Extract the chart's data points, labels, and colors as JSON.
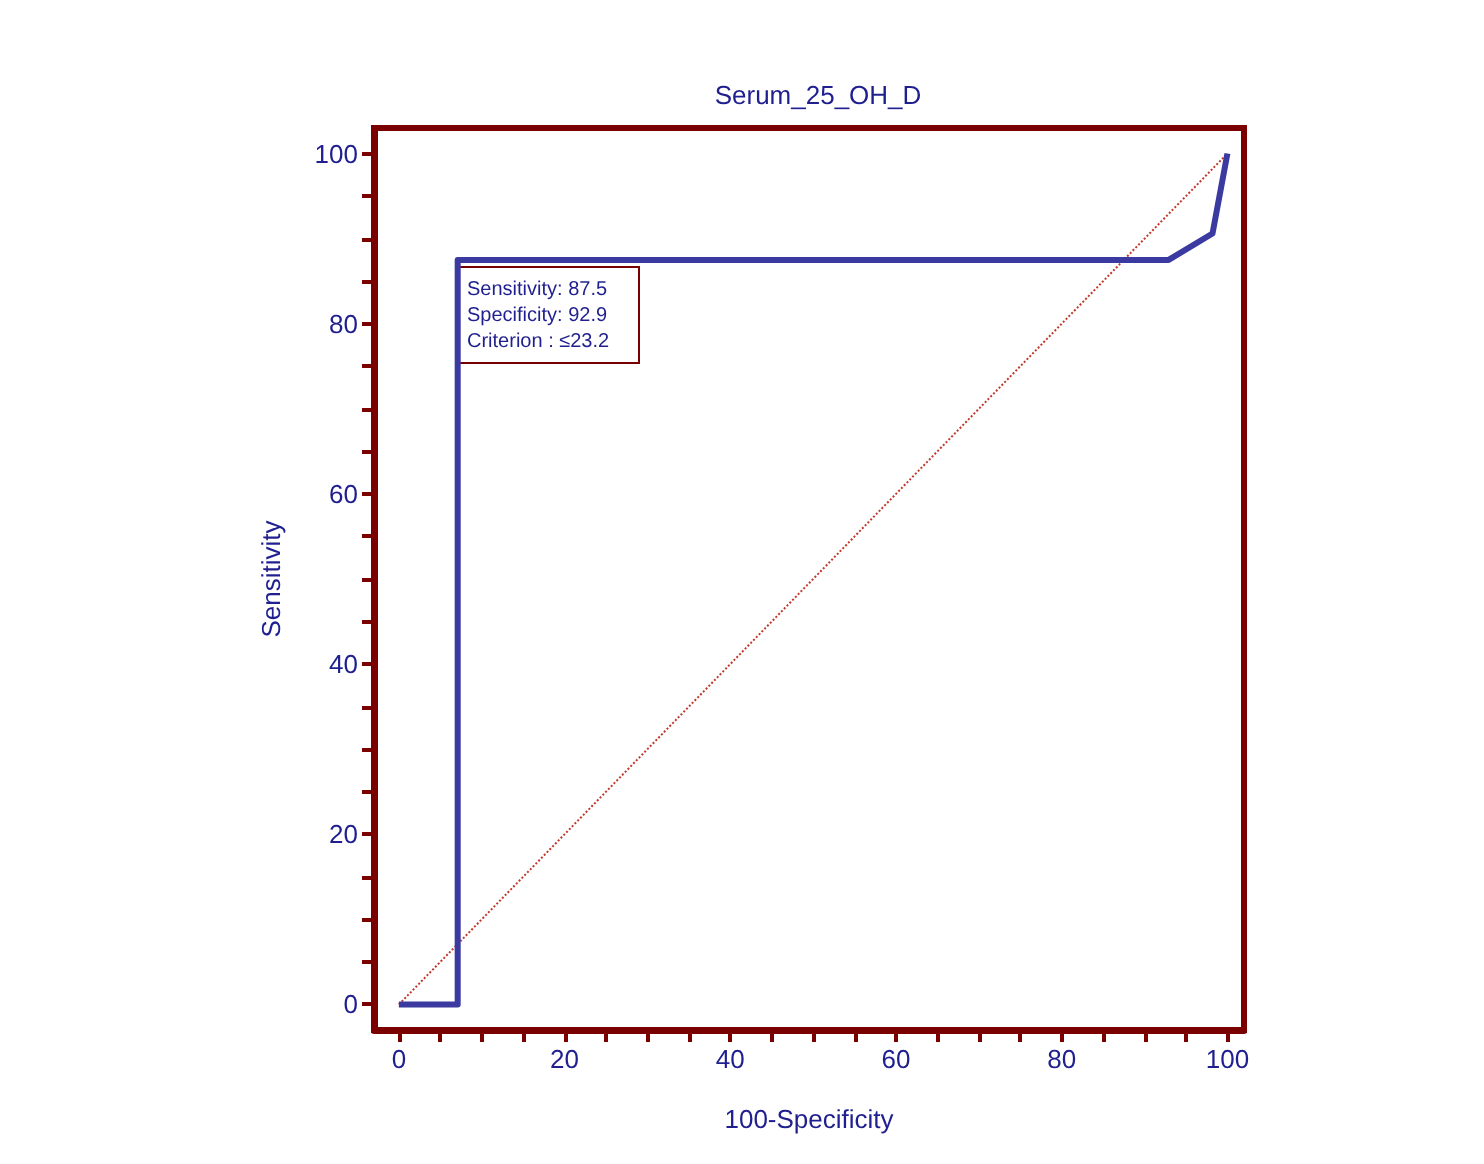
{
  "chart_data": {
    "type": "line",
    "title": "Serum_25_OH_D",
    "xlabel": "100-Specificity",
    "ylabel": "Sensitivity",
    "series": [
      {
        "color": "#3a3aa0",
        "x": [
          0,
          7.1,
          7.1,
          92.9,
          98.2,
          100
        ],
        "values": [
          0,
          0,
          87.5,
          87.5,
          90.6,
          100
        ],
        "line_style": "solid"
      },
      {
        "color": "#c0392b",
        "x": [
          0,
          100
        ],
        "values": [
          0,
          100
        ],
        "line_style": "dotted"
      }
    ],
    "annotations": [
      "Sensitivity: 87.5",
      "Specificity: 92.9",
      "Criterion : ≤23.2"
    ],
    "xlim": [
      -3,
      102
    ],
    "ylim": [
      -3,
      103
    ],
    "xticks": [
      0,
      {
        "value": 5,
        "label": null
      },
      20,
      {
        "value": 10,
        "label": null
      },
      {
        "value": 15,
        "label": null
      },
      {
        "value": 25,
        "label": null
      },
      {
        "value": 30,
        "label": null
      },
      {
        "value": 35,
        "label": null
      },
      40,
      {
        "value": 45,
        "label": null
      },
      {
        "value": 50,
        "label": null
      },
      {
        "value": 55,
        "label": null
      },
      60,
      {
        "value": 65,
        "label": null
      },
      {
        "value": 70,
        "label": null
      },
      {
        "value": 75,
        "label": null
      },
      80,
      {
        "value": 85,
        "label": null
      },
      {
        "value": 90,
        "label": null
      },
      {
        "value": 95,
        "label": null
      },
      100
    ],
    "yticks": [
      0,
      {
        "value": 5,
        "label": null
      },
      {
        "value": 10,
        "label": null
      },
      {
        "value": 15,
        "label": null
      },
      20,
      {
        "value": 25,
        "label": null
      },
      {
        "value": 30,
        "label": null
      },
      {
        "value": 35,
        "label": null
      },
      40,
      {
        "value": 45,
        "label": null
      },
      {
        "value": 50,
        "label": null
      },
      {
        "value": 55,
        "label": null
      },
      60,
      {
        "value": 65,
        "label": null
      },
      {
        "value": 70,
        "label": null
      },
      {
        "value": 75,
        "label": null
      },
      80,
      {
        "value": 85,
        "label": null
      },
      {
        "value": 90,
        "label": null
      },
      {
        "value": 95,
        "label": null
      },
      100
    ],
    "grid": false,
    "marker": "none"
  }
}
